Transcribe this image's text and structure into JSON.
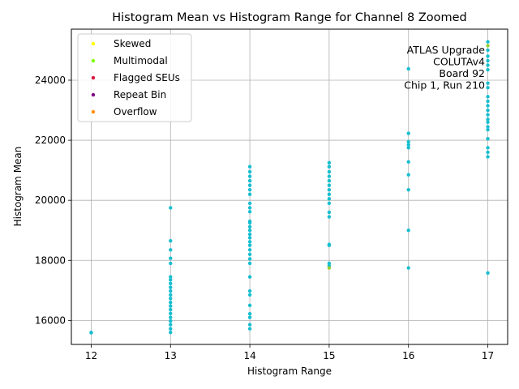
{
  "chart_data": {
    "type": "scatter",
    "title": "Histogram Mean vs Histogram Range for Channel 8 Zoomed",
    "xlabel": "Histogram Range",
    "ylabel": "Histogram Mean",
    "xlim": [
      11.75,
      17.25
    ],
    "ylim": [
      15200,
      25700
    ],
    "x_ticks": [
      12,
      13,
      14,
      15,
      16,
      17
    ],
    "y_ticks": [
      16000,
      18000,
      20000,
      22000,
      24000
    ],
    "grid": true,
    "legend_placement": "upper-left",
    "legend": [
      {
        "name": "Skewed",
        "color": "#ffff00"
      },
      {
        "name": "Multimodal",
        "color": "#7fff00"
      },
      {
        "name": "Flagged SEUs",
        "color": "#dc143c"
      },
      {
        "name": "Repeat Bin",
        "color": "#800080"
      },
      {
        "name": "Overflow",
        "color": "#ff8c00"
      }
    ],
    "annotations": [
      "ATLAS Upgrade",
      "COLUTAv4",
      "Board 92",
      "Chip 1, Run 210"
    ],
    "series": [
      {
        "color": "#17becf",
        "points": [
          [
            12,
            15590
          ],
          [
            12,
            15600
          ],
          [
            13,
            15600
          ],
          [
            13,
            15720
          ],
          [
            13,
            15860
          ],
          [
            13,
            15980
          ],
          [
            13,
            16100
          ],
          [
            13,
            16230
          ],
          [
            13,
            16360
          ],
          [
            13,
            16480
          ],
          [
            13,
            16600
          ],
          [
            13,
            16730
          ],
          [
            13,
            16850
          ],
          [
            13,
            16980
          ],
          [
            13,
            17100
          ],
          [
            13,
            17230
          ],
          [
            13,
            17350
          ],
          [
            13,
            17450
          ],
          [
            13,
            17900
          ],
          [
            13,
            18070
          ],
          [
            13,
            18350
          ],
          [
            13,
            18650
          ],
          [
            13,
            19750
          ],
          [
            14,
            15720
          ],
          [
            14,
            15860
          ],
          [
            14,
            16100
          ],
          [
            14,
            16220
          ],
          [
            14,
            16500
          ],
          [
            14,
            16850
          ],
          [
            14,
            16980
          ],
          [
            14,
            17450
          ],
          [
            14,
            17900
          ],
          [
            14,
            18050
          ],
          [
            14,
            18200
          ],
          [
            14,
            18350
          ],
          [
            14,
            18500
          ],
          [
            14,
            18620
          ],
          [
            14,
            18750
          ],
          [
            14,
            18870
          ],
          [
            14,
            19000
          ],
          [
            14,
            19120
          ],
          [
            14,
            19250
          ],
          [
            14,
            19300
          ],
          [
            14,
            19620
          ],
          [
            14,
            19750
          ],
          [
            14,
            19900
          ],
          [
            14,
            20200
          ],
          [
            14,
            20350
          ],
          [
            14,
            20500
          ],
          [
            14,
            20650
          ],
          [
            14,
            20800
          ],
          [
            14,
            20950
          ],
          [
            14,
            21120
          ],
          [
            15,
            17820
          ],
          [
            15,
            17900
          ],
          [
            15,
            18500
          ],
          [
            15,
            18530
          ],
          [
            15,
            19450
          ],
          [
            15,
            19600
          ],
          [
            15,
            19900
          ],
          [
            15,
            20050
          ],
          [
            15,
            20200
          ],
          [
            15,
            20350
          ],
          [
            15,
            20500
          ],
          [
            15,
            20650
          ],
          [
            15,
            20800
          ],
          [
            15,
            20950
          ],
          [
            15,
            21120
          ],
          [
            15,
            21250
          ],
          [
            16,
            17750
          ],
          [
            16,
            19000
          ],
          [
            16,
            20350
          ],
          [
            16,
            20850
          ],
          [
            16,
            21280
          ],
          [
            16,
            21750
          ],
          [
            16,
            21850
          ],
          [
            16,
            21950
          ],
          [
            16,
            22230
          ],
          [
            16,
            24380
          ],
          [
            17,
            17580
          ],
          [
            17,
            21450
          ],
          [
            17,
            21600
          ],
          [
            17,
            21750
          ],
          [
            17,
            22050
          ],
          [
            17,
            22350
          ],
          [
            17,
            22450
          ],
          [
            17,
            22600
          ],
          [
            17,
            22700
          ],
          [
            17,
            22850
          ],
          [
            17,
            23000
          ],
          [
            17,
            23150
          ],
          [
            17,
            23300
          ],
          [
            17,
            23450
          ],
          [
            17,
            23750
          ],
          [
            17,
            23900
          ],
          [
            17,
            24350
          ],
          [
            17,
            24500
          ],
          [
            17,
            24650
          ],
          [
            17,
            24800
          ],
          [
            17,
            25000
          ],
          [
            17,
            25280
          ]
        ]
      },
      {
        "color": "#9acd32",
        "points": [
          [
            15,
            17750
          ],
          [
            17,
            25150
          ]
        ]
      }
    ]
  }
}
